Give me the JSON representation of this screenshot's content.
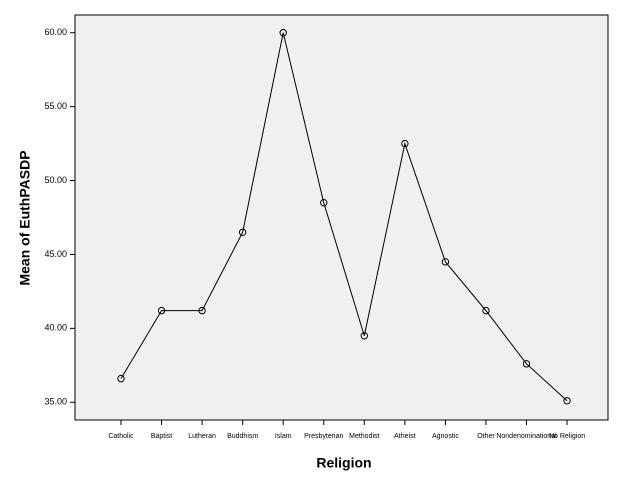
{
  "chart_data": {
    "type": "line",
    "x_label": "Religion",
    "y_label": "Mean of EuthPASDP",
    "categories": [
      "Catholic",
      "Baptist",
      "Lutheran",
      "Buddhism",
      "Islam",
      "Presbyterian",
      "Methodist",
      "Atheist",
      "Agnostic",
      "Other",
      "Nondenominational",
      "No Religion"
    ],
    "values": [
      36.6,
      41.2,
      41.2,
      46.5,
      60.0,
      48.5,
      39.5,
      52.5,
      44.5,
      41.2,
      37.6,
      35.1
    ],
    "color": "#000000",
    "ylim": [
      33.8,
      61.2
    ],
    "yticks": [
      {
        "value": 35,
        "label": "35.00"
      },
      {
        "value": 40,
        "label": "40.00"
      },
      {
        "value": 45,
        "label": "45.00"
      },
      {
        "value": 50,
        "label": "50.00"
      },
      {
        "value": 55,
        "label": "55.00"
      },
      {
        "value": 60,
        "label": "60.00"
      }
    ],
    "grid": false
  }
}
